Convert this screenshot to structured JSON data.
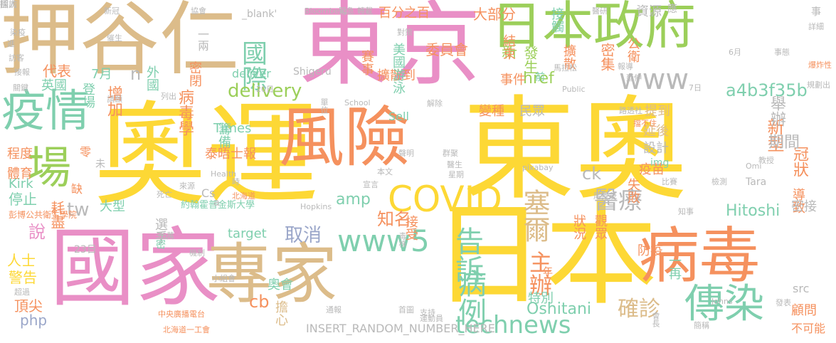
{
  "palette": {
    "yellow": "#fdd835",
    "pink": "#e98fc6",
    "tan": "#dcbc8a",
    "green": "#9ccf5a",
    "orange": "#f5915e",
    "teal": "#7fcfae",
    "grey": "#b9b9b9",
    "blue": "#9aa6c9"
  },
  "words": [
    {
      "text": "奧運",
      "color": "yellow"
    },
    {
      "text": "東奧",
      "color": "yellow"
    },
    {
      "text": "日本",
      "color": "yellow"
    },
    {
      "text": "東京",
      "color": "pink"
    },
    {
      "text": "國家",
      "color": "pink"
    },
    {
      "text": "押谷仁",
      "color": "tan"
    },
    {
      "text": "風險",
      "color": "orange"
    },
    {
      "text": "專家",
      "color": "tan"
    },
    {
      "text": "病毒",
      "color": "orange"
    },
    {
      "text": "日本政府",
      "color": "green"
    },
    {
      "text": "疫情",
      "color": "teal"
    },
    {
      "text": "場",
      "color": "green"
    },
    {
      "text": "傳染",
      "color": "teal"
    },
    {
      "text": "COVID",
      "color": "yellow"
    },
    {
      "text": "www5",
      "color": "teal"
    },
    {
      "text": "technews",
      "color": "teal"
    },
    {
      "text": "國際",
      "color": "teal"
    },
    {
      "text": "塞爾",
      "color": "tan"
    },
    {
      "text": "醫療",
      "color": "grey"
    },
    {
      "text": "告訴",
      "color": "teal"
    },
    {
      "text": "病例",
      "color": "teal"
    },
    {
      "text": "確診",
      "color": "tan"
    },
    {
      "text": "主辦",
      "color": "orange"
    },
    {
      "text": "取消",
      "color": "blue"
    },
    {
      "text": "delivery",
      "color": "green"
    },
    {
      "text": "a4b3f35b",
      "color": "teal"
    },
    {
      "text": "www",
      "color": "grey"
    },
    {
      "text": "Hitoshi",
      "color": "teal"
    },
    {
      "text": "Oshitani",
      "color": "teal"
    },
    {
      "text": "tw",
      "color": "grey"
    },
    {
      "text": "ck",
      "color": "grey"
    },
    {
      "text": "amp",
      "color": "teal"
    },
    {
      "text": "href",
      "color": "green"
    },
    {
      "text": "新型",
      "color": "orange"
    },
    {
      "text": "冠狀",
      "color": "orange"
    },
    {
      "text": "知名",
      "color": "orange"
    },
    {
      "text": "病毒學",
      "color": "orange"
    },
    {
      "text": "增加",
      "color": "orange"
    },
    {
      "text": "說",
      "color": "pink"
    },
    {
      "text": "停止",
      "color": "teal"
    },
    {
      "text": "警告",
      "color": "yellow"
    },
    {
      "text": "頂尖",
      "color": "orange"
    },
    {
      "text": "人士",
      "color": "yellow"
    },
    {
      "text": "php",
      "color": "blue"
    },
    {
      "text": "cb",
      "color": "orange"
    },
    {
      "text": "n",
      "color": "grey"
    },
    {
      "text": "外國",
      "color": "teal"
    },
    {
      "text": "新",
      "color": "green"
    },
    {
      "text": "發生",
      "color": "green"
    },
    {
      "text": "密集",
      "color": "orange"
    },
    {
      "text": "擴散到",
      "color": "orange"
    },
    {
      "text": "擴散",
      "color": "orange"
    },
    {
      "text": "接觸",
      "color": "teal"
    },
    {
      "text": "資源",
      "color": "grey"
    },
    {
      "text": "委員會",
      "color": "orange"
    },
    {
      "text": "結束",
      "color": "orange"
    },
    {
      "text": "美國",
      "color": "teal"
    },
    {
      "text": "游泳",
      "color": "teal"
    },
    {
      "text": "賽事",
      "color": "orange"
    },
    {
      "text": "大部分",
      "color": "orange"
    },
    {
      "text": "百分之百",
      "color": "orange"
    },
    {
      "text": "事件",
      "color": "orange"
    },
    {
      "text": "變種",
      "color": "orange"
    },
    {
      "text": "民眾",
      "color": "grey"
    },
    {
      "text": "舉辦",
      "color": "grey"
    },
    {
      "text": "期間",
      "color": "grey"
    },
    {
      "text": "提到",
      "color": "tan"
    },
    {
      "text": "延後",
      "color": "tan"
    },
    {
      "text": "設計",
      "color": "grey"
    },
    {
      "text": "疫苗",
      "color": "orange"
    },
    {
      "text": "失敗",
      "color": "orange"
    },
    {
      "text": "籌備",
      "color": "teal"
    },
    {
      "text": "泰晤士報",
      "color": "orange"
    },
    {
      "text": "Times",
      "color": "teal"
    },
    {
      "text": "約翰霍普金斯大學",
      "color": "teal"
    },
    {
      "text": "代表",
      "color": "orange"
    },
    {
      "text": "英國",
      "color": "teal"
    },
    {
      "text": "登場",
      "color": "teal"
    },
    {
      "text": "7月",
      "color": "teal"
    },
    {
      "text": "程度",
      "color": "orange"
    },
    {
      "text": "體育",
      "color": "orange"
    },
    {
      "text": "Kirk",
      "color": "teal"
    },
    {
      "text": "大型",
      "color": "teal"
    },
    {
      "text": "耗盡",
      "color": "orange"
    },
    {
      "text": "彭博公共衛生學院",
      "color": "orange"
    },
    {
      "text": "23日",
      "color": "grey"
    },
    {
      "text": "選手",
      "color": "grey"
    },
    {
      "text": "target",
      "color": "teal"
    },
    {
      "text": "奧會",
      "color": "teal"
    },
    {
      "text": "擔心",
      "color": "tan"
    },
    {
      "text": "特別",
      "color": "teal"
    },
    {
      "text": "INSERT_RANDOM_NUMBER_HERE",
      "color": "grey"
    },
    {
      "text": "顧問",
      "color": "orange"
    },
    {
      "text": "不可能",
      "color": "orange"
    },
    {
      "text": "一再",
      "color": "teal"
    },
    {
      "text": "防疫",
      "color": "orange"
    },
    {
      "text": "狀況",
      "color": "orange"
    },
    {
      "text": "觀眾",
      "color": "orange"
    },
    {
      "text": "接受",
      "color": "orange"
    },
    {
      "text": "導致",
      "color": "orange"
    },
    {
      "text": "密接",
      "color": "grey"
    },
    {
      "text": "img",
      "color": "teal"
    },
    {
      "text": "src",
      "color": "grey"
    },
    {
      "text": "Sell",
      "color": "teal"
    },
    {
      "text": "deliver",
      "color": "teal"
    },
    {
      "text": "一兩",
      "color": "grey"
    },
    {
      "text": "密閉",
      "color": "orange"
    },
    {
      "text": "_blank'",
      "color": "grey"
    },
    {
      "text": "Cs",
      "color": "grey"
    },
    {
      "text": "a",
      "color": "grey"
    },
    {
      "text": "零",
      "color": "orange"
    },
    {
      "text": "未",
      "color": "grey"
    },
    {
      "text": "缺",
      "color": "orange"
    },
    {
      "text": "前",
      "color": "teal"
    },
    {
      "text": "年",
      "color": "orange"
    },
    {
      "text": "密",
      "color": "teal"
    },
    {
      "text": "Shigeru",
      "color": "grey"
    },
    {
      "text": "應",
      "color": "grey"
    },
    {
      "text": "事",
      "color": "grey"
    },
    {
      "text": "公衛",
      "color": "orange"
    },
    {
      "text": "Tara",
      "color": "grey"
    },
    {
      "text": "新冠",
      "color": "grey"
    },
    {
      "text": "協會",
      "color": "grey"
    },
    {
      "text": "Bloomberg",
      "color": "grey"
    },
    {
      "text": "緊急",
      "color": "grey"
    },
    {
      "text": "轉載",
      "color": "grey"
    },
    {
      "text": "醫研",
      "color": "grey"
    },
    {
      "text": "馬拉松",
      "color": "grey"
    },
    {
      "text": "School",
      "color": "grey"
    },
    {
      "text": "Public",
      "color": "grey"
    },
    {
      "text": "Health",
      "color": "grey"
    },
    {
      "text": "Hopkins",
      "color": "grey"
    },
    {
      "text": "pixabay",
      "color": "grey"
    },
    {
      "text": "Johns",
      "color": "grey"
    },
    {
      "text": "Omi",
      "color": "grey"
    },
    {
      "text": "單位",
      "color": "grey"
    },
    {
      "text": "列出",
      "color": "grey"
    },
    {
      "text": "請願",
      "color": "grey"
    },
    {
      "text": "本文",
      "color": "grey"
    },
    {
      "text": "聲明",
      "color": "grey"
    },
    {
      "text": "群聚",
      "color": "grey"
    },
    {
      "text": "比賽",
      "color": "grey"
    },
    {
      "text": "檢測",
      "color": "grey"
    },
    {
      "text": "教授",
      "color": "grey"
    },
    {
      "text": "星期",
      "color": "grey"
    },
    {
      "text": "7日",
      "color": "grey"
    },
    {
      "text": "6月",
      "color": "grey"
    },
    {
      "text": "20日",
      "color": "grey"
    },
    {
      "text": "76萬",
      "color": "grey"
    },
    {
      "text": "小組會",
      "color": "grey"
    },
    {
      "text": "通報",
      "color": "grey"
    },
    {
      "text": "首圖",
      "color": "grey"
    },
    {
      "text": "支持",
      "color": "grey"
    },
    {
      "text": "運動員",
      "color": "grey"
    },
    {
      "text": "中央廣播電台",
      "color": "orange"
    },
    {
      "text": "超過",
      "color": "grey"
    },
    {
      "text": "北海道一工會",
      "color": "orange"
    },
    {
      "text": "發表",
      "color": "grey"
    },
    {
      "text": "簡稱",
      "color": "grey"
    },
    {
      "text": "會長",
      "color": "grey"
    },
    {
      "text": "毒株",
      "color": "grey"
    },
    {
      "text": "知事",
      "color": "grey"
    },
    {
      "text": "尾身茂",
      "color": "grey"
    },
    {
      "text": "北海道",
      "color": "orange"
    },
    {
      "text": "死亡",
      "color": "grey"
    },
    {
      "text": "來源",
      "color": "grey"
    },
    {
      "text": "時",
      "color": "grey"
    },
    {
      "text": "宣言",
      "color": "grey"
    },
    {
      "text": "醫生",
      "color": "grey"
    },
    {
      "text": "機制",
      "color": "grey"
    },
    {
      "text": "關鍵",
      "color": "grey"
    },
    {
      "text": "接報",
      "color": "grey"
    },
    {
      "text": "訪客",
      "color": "grey"
    },
    {
      "text": "進",
      "color": "grey"
    },
    {
      "text": "催生",
      "color": "grey"
    },
    {
      "text": "對策",
      "color": "grey"
    },
    {
      "text": "解除",
      "color": "grey"
    },
    {
      "text": "路透社",
      "color": "grey"
    },
    {
      "text": "擋不住",
      "color": "orange"
    },
    {
      "text": "事態",
      "color": "grey"
    },
    {
      "text": "延伸",
      "color": "grey"
    },
    {
      "text": "報導",
      "color": "grey"
    },
    {
      "text": "規劃出",
      "color": "grey"
    },
    {
      "text": "爆炸性",
      "color": "orange"
    },
    {
      "text": "詳細",
      "color": "grey"
    },
    {
      "text": "染疫",
      "color": "grey"
    },
    {
      "text": "國人",
      "color": "grey"
    },
    {
      "text": "採訪",
      "color": "grey"
    }
  ]
}
